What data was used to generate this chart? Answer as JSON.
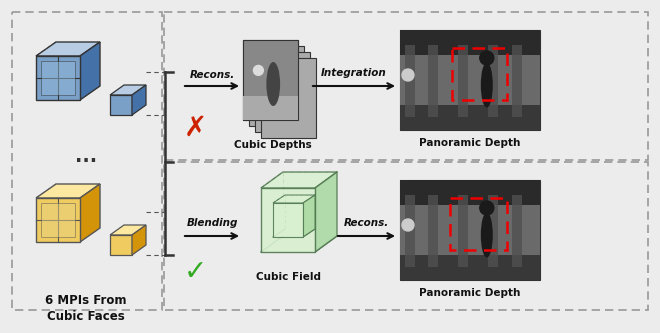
{
  "bg_color": "#ececec",
  "title_text": "6 MPIs From\nCubic Faces",
  "top_label1": "Cubic Depths",
  "top_label2": "Panoramic Depth",
  "bot_label1": "Cubic Field",
  "bot_label2": "Panoramic Depth",
  "arrow_recons_top": "Recons.",
  "arrow_integration": "Integration",
  "arrow_blending": "Blending",
  "arrow_recons_bot": "Recons.",
  "blue_light": "#b8cce4",
  "blue_mid": "#7aa0c8",
  "blue_dark": "#4472a8",
  "yellow_light": "#fce8a0",
  "yellow_mid": "#f0cc60",
  "yellow_dark": "#d4940a",
  "green_light": "#d8f0d0",
  "green_mid": "#a8d8a0",
  "green_dark": "#507850",
  "red_box_color": "#ee0000",
  "cross_color": "#cc2200",
  "check_color": "#33aa22",
  "border_dash": "#888888",
  "arrow_color": "#111111",
  "text_color": "#111111",
  "panel_bg": "#f0f0f0"
}
